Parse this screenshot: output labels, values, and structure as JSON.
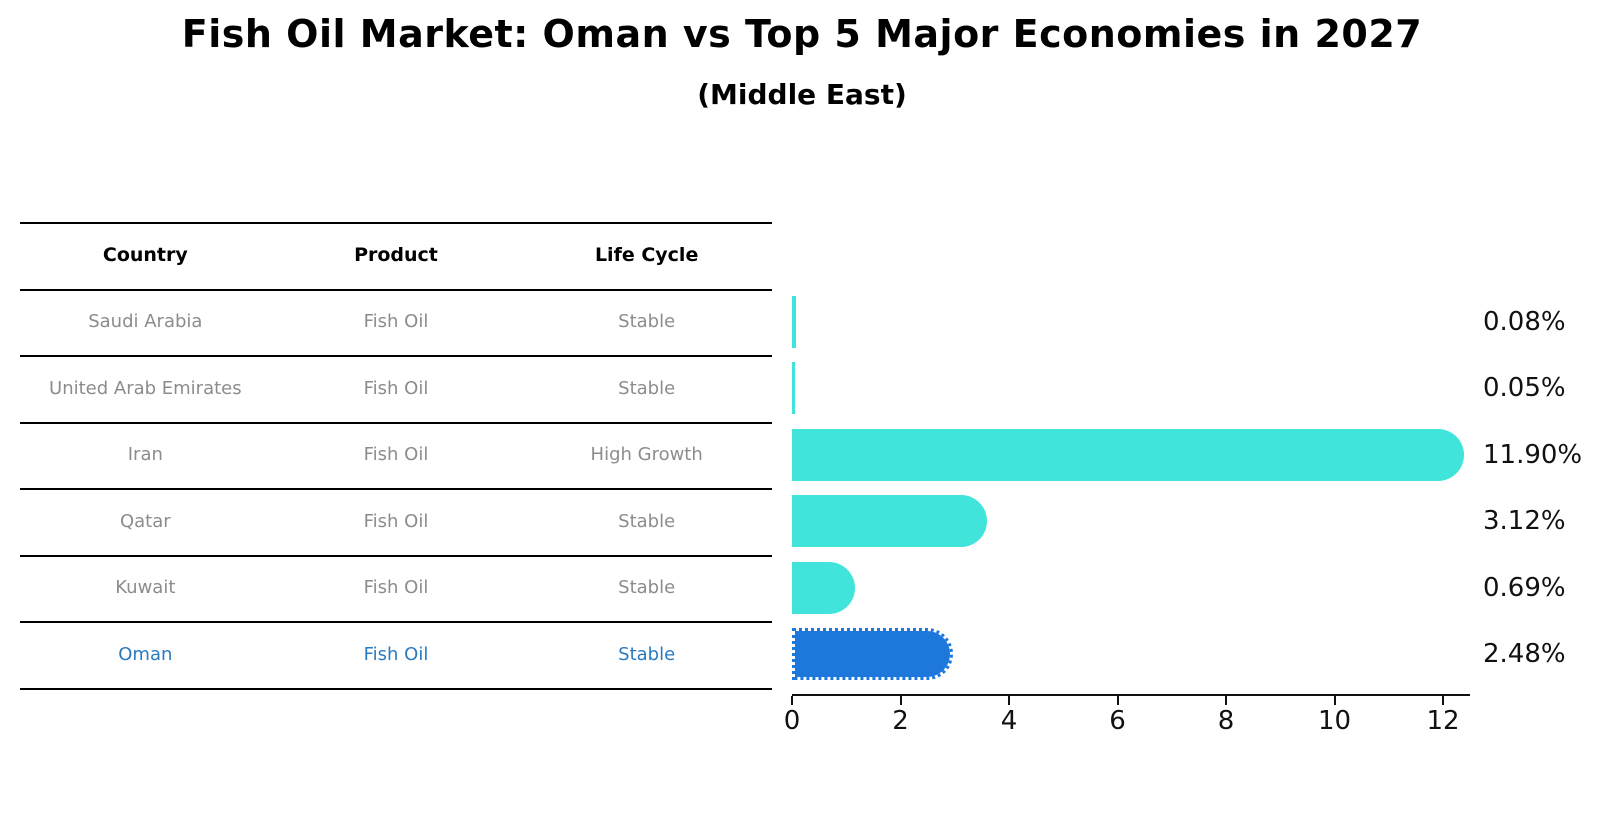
{
  "title": "Fish Oil Market: Oman vs Top 5 Major Economies in 2027",
  "subtitle": "(Middle East)",
  "table": {
    "headers": [
      "Country",
      "Product",
      "Life Cycle"
    ],
    "rows": [
      {
        "country": "Saudi Arabia",
        "product": "Fish Oil",
        "life_cycle": "Stable",
        "highlight": false
      },
      {
        "country": "United Arab Emirates",
        "product": "Fish Oil",
        "life_cycle": "Stable",
        "highlight": false
      },
      {
        "country": "Iran",
        "product": "Fish Oil",
        "life_cycle": "High Growth",
        "highlight": false
      },
      {
        "country": "Qatar",
        "product": "Fish Oil",
        "life_cycle": "Stable",
        "highlight": false
      },
      {
        "country": "Kuwait",
        "product": "Fish Oil",
        "life_cycle": "Stable",
        "highlight": false
      },
      {
        "country": "Oman",
        "product": "Fish Oil",
        "life_cycle": "Stable",
        "highlight": true
      }
    ]
  },
  "chart_data": {
    "type": "bar",
    "orientation": "horizontal",
    "title": "Fish Oil Market: Oman vs Top 5 Major Economies in 2027 (Middle East)",
    "categories": [
      "Saudi Arabia",
      "United Arab Emirates",
      "Iran",
      "Qatar",
      "Kuwait",
      "Oman"
    ],
    "values": [
      0.08,
      0.05,
      11.9,
      3.12,
      0.69,
      2.48
    ],
    "value_labels": [
      "0.08%",
      "0.05%",
      "11.90%",
      "3.12%",
      "0.69%",
      "2.48%"
    ],
    "unit": "%",
    "xlabel": "",
    "ylabel": "",
    "xticks": [
      0,
      2,
      4,
      6,
      8,
      10,
      12
    ],
    "xlim": [
      0,
      12.5
    ],
    "grid": false,
    "legend": "none",
    "highlight_index": 5,
    "colors": {
      "bar": "#40e4da",
      "highlight_bar": "#1e78dc",
      "highlight_text": "#2a7ac0",
      "row_text": "#8c8c8c",
      "label_text": "#111111",
      "line": "#000000"
    }
  }
}
